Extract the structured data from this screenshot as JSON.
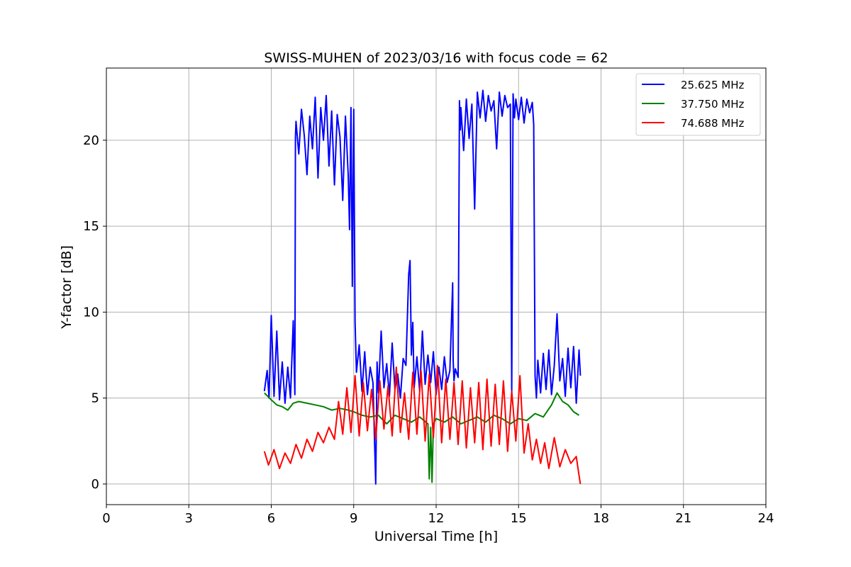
{
  "chart_data": {
    "type": "line",
    "title": "SWISS-MUHEN of 2023/03/16 with focus code = 62",
    "xlabel": "Universal Time [h]",
    "ylabel": "Y-factor [dB]",
    "xlim": [
      0,
      24
    ],
    "ylim": [
      -1.2,
      24.2
    ],
    "xticks": [
      0,
      3,
      6,
      9,
      12,
      15,
      18,
      21,
      24
    ],
    "yticks": [
      0,
      5,
      10,
      15,
      20
    ],
    "grid": true,
    "legend": "top-right",
    "series": [
      {
        "name": "25.625 MHz",
        "color": "#0000ff",
        "x": [
          5.75,
          5.85,
          5.92,
          6.0,
          6.1,
          6.2,
          6.3,
          6.4,
          6.5,
          6.6,
          6.7,
          6.8,
          6.86,
          6.88,
          6.9,
          7.0,
          7.1,
          7.2,
          7.3,
          7.4,
          7.5,
          7.6,
          7.7,
          7.8,
          7.9,
          8.0,
          8.1,
          8.2,
          8.3,
          8.4,
          8.5,
          8.6,
          8.7,
          8.8,
          8.85,
          8.9,
          8.95,
          9.0,
          9.05,
          9.1,
          9.2,
          9.3,
          9.4,
          9.5,
          9.6,
          9.7,
          9.8,
          9.85,
          9.9,
          10.0,
          10.1,
          10.2,
          10.3,
          10.4,
          10.5,
          10.6,
          10.7,
          10.8,
          10.9,
          11.0,
          11.05,
          11.1,
          11.15,
          11.2,
          11.3,
          11.4,
          11.5,
          11.6,
          11.7,
          11.8,
          11.9,
          12.0,
          12.1,
          12.2,
          12.3,
          12.4,
          12.5,
          12.6,
          12.62,
          12.65,
          12.7,
          12.8,
          12.85,
          12.88,
          12.9,
          13.0,
          13.1,
          13.2,
          13.3,
          13.4,
          13.5,
          13.6,
          13.7,
          13.8,
          13.9,
          14.0,
          14.1,
          14.2,
          14.3,
          14.4,
          14.5,
          14.6,
          14.7,
          14.75,
          14.8,
          14.85,
          14.9,
          15.0,
          15.1,
          15.2,
          15.3,
          15.4,
          15.5,
          15.55,
          15.6,
          15.65,
          15.7,
          15.8,
          15.9,
          16.0,
          16.1,
          16.2,
          16.3,
          16.4,
          16.5,
          16.6,
          16.7,
          16.8,
          16.9,
          17.0,
          17.1,
          17.2,
          17.25
        ],
        "values": [
          5.4,
          6.6,
          5.0,
          9.8,
          5.1,
          8.9,
          4.9,
          7.1,
          4.7,
          6.8,
          5.0,
          9.5,
          5.2,
          20.2,
          21.1,
          19.2,
          21.8,
          20.3,
          18.0,
          21.4,
          19.5,
          22.5,
          17.8,
          21.9,
          20.0,
          22.6,
          18.5,
          21.7,
          17.4,
          21.5,
          20.2,
          16.5,
          21.4,
          18.0,
          14.8,
          21.9,
          11.5,
          21.8,
          9.4,
          6.5,
          8.1,
          5.4,
          7.7,
          5.2,
          6.8,
          5.9,
          0.0,
          7.1,
          5.3,
          8.9,
          5.6,
          7.0,
          5.1,
          8.2,
          5.5,
          6.4,
          5.0,
          7.3,
          6.9,
          12.2,
          13.0,
          7.5,
          9.4,
          5.6,
          7.4,
          5.4,
          8.9,
          5.8,
          7.5,
          5.9,
          7.7,
          5.2,
          6.8,
          5.5,
          7.4,
          5.9,
          6.6,
          11.7,
          7.2,
          6.0,
          6.7,
          6.2,
          22.3,
          20.6,
          21.9,
          19.4,
          22.4,
          20.1,
          22.1,
          16.0,
          22.8,
          21.3,
          22.9,
          21.1,
          22.6,
          21.7,
          22.3,
          19.5,
          22.8,
          21.4,
          22.6,
          21.9,
          22.1,
          5.3,
          22.7,
          21.3,
          22.4,
          21.2,
          22.5,
          21.0,
          22.4,
          21.6,
          22.2,
          20.9,
          6.3,
          5.0,
          7.2,
          5.3,
          7.6,
          5.5,
          7.8,
          5.2,
          6.9,
          9.9,
          6.0,
          7.3,
          5.1,
          7.9,
          5.6,
          8.0,
          4.7,
          7.8,
          6.3
        ]
      },
      {
        "name": "37.750 MHz",
        "color": "#008000",
        "x": [
          5.75,
          6.0,
          6.2,
          6.4,
          6.6,
          6.8,
          7.0,
          7.3,
          7.6,
          7.9,
          8.2,
          8.5,
          8.8,
          9.0,
          9.3,
          9.6,
          9.9,
          10.2,
          10.5,
          10.8,
          11.1,
          11.4,
          11.7,
          11.75,
          11.8,
          11.85,
          11.9,
          12.0,
          12.3,
          12.6,
          12.9,
          13.2,
          13.5,
          13.8,
          14.1,
          14.4,
          14.7,
          15.0,
          15.3,
          15.6,
          15.9,
          16.2,
          16.4,
          16.6,
          16.8,
          17.0,
          17.2
        ],
        "values": [
          5.3,
          4.9,
          4.6,
          4.5,
          4.3,
          4.7,
          4.8,
          4.7,
          4.6,
          4.5,
          4.3,
          4.4,
          4.3,
          4.2,
          4.0,
          3.9,
          4.0,
          3.5,
          4.0,
          3.8,
          3.6,
          3.9,
          3.5,
          0.3,
          3.3,
          0.1,
          3.5,
          3.8,
          3.6,
          3.9,
          3.5,
          3.7,
          3.9,
          3.6,
          4.0,
          3.8,
          3.5,
          3.8,
          3.7,
          4.1,
          3.9,
          4.6,
          5.3,
          4.8,
          4.6,
          4.2,
          4.0
        ]
      },
      {
        "name": "74.688 MHz",
        "color": "#ff0000",
        "x": [
          5.75,
          5.9,
          6.1,
          6.3,
          6.5,
          6.7,
          6.9,
          7.1,
          7.3,
          7.5,
          7.7,
          7.9,
          8.1,
          8.3,
          8.45,
          8.6,
          8.75,
          8.9,
          9.05,
          9.2,
          9.35,
          9.5,
          9.65,
          9.8,
          9.95,
          10.1,
          10.25,
          10.4,
          10.55,
          10.7,
          10.85,
          11.0,
          11.15,
          11.3,
          11.45,
          11.6,
          11.75,
          11.9,
          12.05,
          12.2,
          12.35,
          12.5,
          12.65,
          12.8,
          12.95,
          13.1,
          13.25,
          13.4,
          13.55,
          13.7,
          13.85,
          14.0,
          14.15,
          14.3,
          14.45,
          14.6,
          14.75,
          14.9,
          15.05,
          15.2,
          15.35,
          15.5,
          15.65,
          15.8,
          15.95,
          16.1,
          16.3,
          16.5,
          16.7,
          16.9,
          17.1,
          17.2,
          17.25
        ],
        "values": [
          1.9,
          1.1,
          2.0,
          0.9,
          1.8,
          1.2,
          2.3,
          1.5,
          2.6,
          1.9,
          3.0,
          2.4,
          3.3,
          2.6,
          4.8,
          2.9,
          5.6,
          3.0,
          6.3,
          2.8,
          5.9,
          3.1,
          5.5,
          2.6,
          6.0,
          3.2,
          5.7,
          2.8,
          6.8,
          3.0,
          5.3,
          2.6,
          6.5,
          2.9,
          6.6,
          2.5,
          6.4,
          2.7,
          6.9,
          2.4,
          6.1,
          2.6,
          5.9,
          2.3,
          6.0,
          2.1,
          5.6,
          2.4,
          5.9,
          2.0,
          6.1,
          2.2,
          5.8,
          2.3,
          6.0,
          1.9,
          5.4,
          2.5,
          6.3,
          1.8,
          3.5,
          1.4,
          2.6,
          1.2,
          2.4,
          0.9,
          2.7,
          1.0,
          2.0,
          1.2,
          1.6,
          0.5,
          0.0
        ]
      }
    ]
  }
}
